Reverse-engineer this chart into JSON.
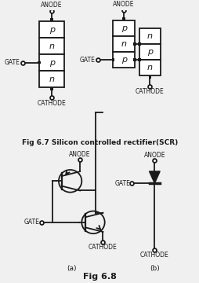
{
  "bg_color": "#f0f0f0",
  "title_fig67": "Fig 6.7 Silicon controlled rectifier(SCR)",
  "title_fig68": "Fig 6.8",
  "label_anode": "ANODE",
  "label_cathode": "CATHODE",
  "label_gate": "GATE",
  "label_a": "(a)",
  "label_b": "(b)",
  "line_color": "#1a1a1a",
  "box_color": "#ffffff",
  "text_color": "#1a1a1a",
  "left_layers": [
    "p",
    "n",
    "p",
    "n"
  ],
  "right_left_layers": [
    "p",
    "n",
    "p"
  ],
  "right_right_layers": [
    "n",
    "p",
    "n"
  ]
}
